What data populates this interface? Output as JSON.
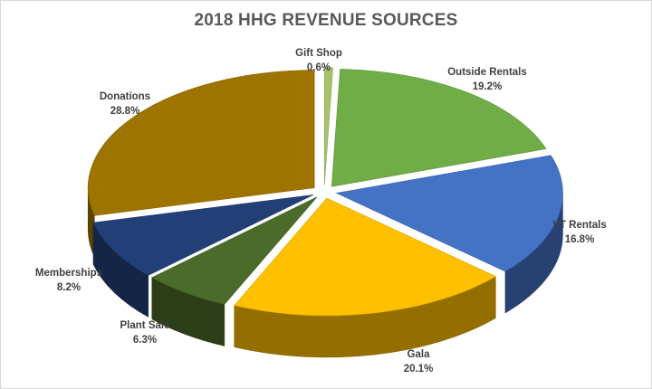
{
  "chart_data": {
    "type": "pie",
    "style": "3d-exploded-pie",
    "title": "2018 HHG REVENUE SOURCES",
    "legend": "none",
    "slices": [
      {
        "label": "Gift Shop",
        "value": 0.6,
        "value_label": "0.6%",
        "color": "#a5c36b"
      },
      {
        "label": "Outside Rentals",
        "value": 19.2,
        "value_label": "19.2%",
        "color": "#70ad47"
      },
      {
        "label": "VT Rentals",
        "value": 16.8,
        "value_label": "16.8%",
        "color": "#4472c4"
      },
      {
        "label": "Gala",
        "value": 20.1,
        "value_label": "20.1%",
        "color": "#ffc000"
      },
      {
        "label": "Plant Sale",
        "value": 6.3,
        "value_label": "6.3%",
        "color": "#4a6b2a"
      },
      {
        "label": "Memberships",
        "value": 8.2,
        "value_label": "8.2%",
        "color": "#223f78"
      },
      {
        "label": "Donations",
        "value": 28.8,
        "value_label": "28.8%",
        "color": "#9e7400"
      }
    ]
  }
}
